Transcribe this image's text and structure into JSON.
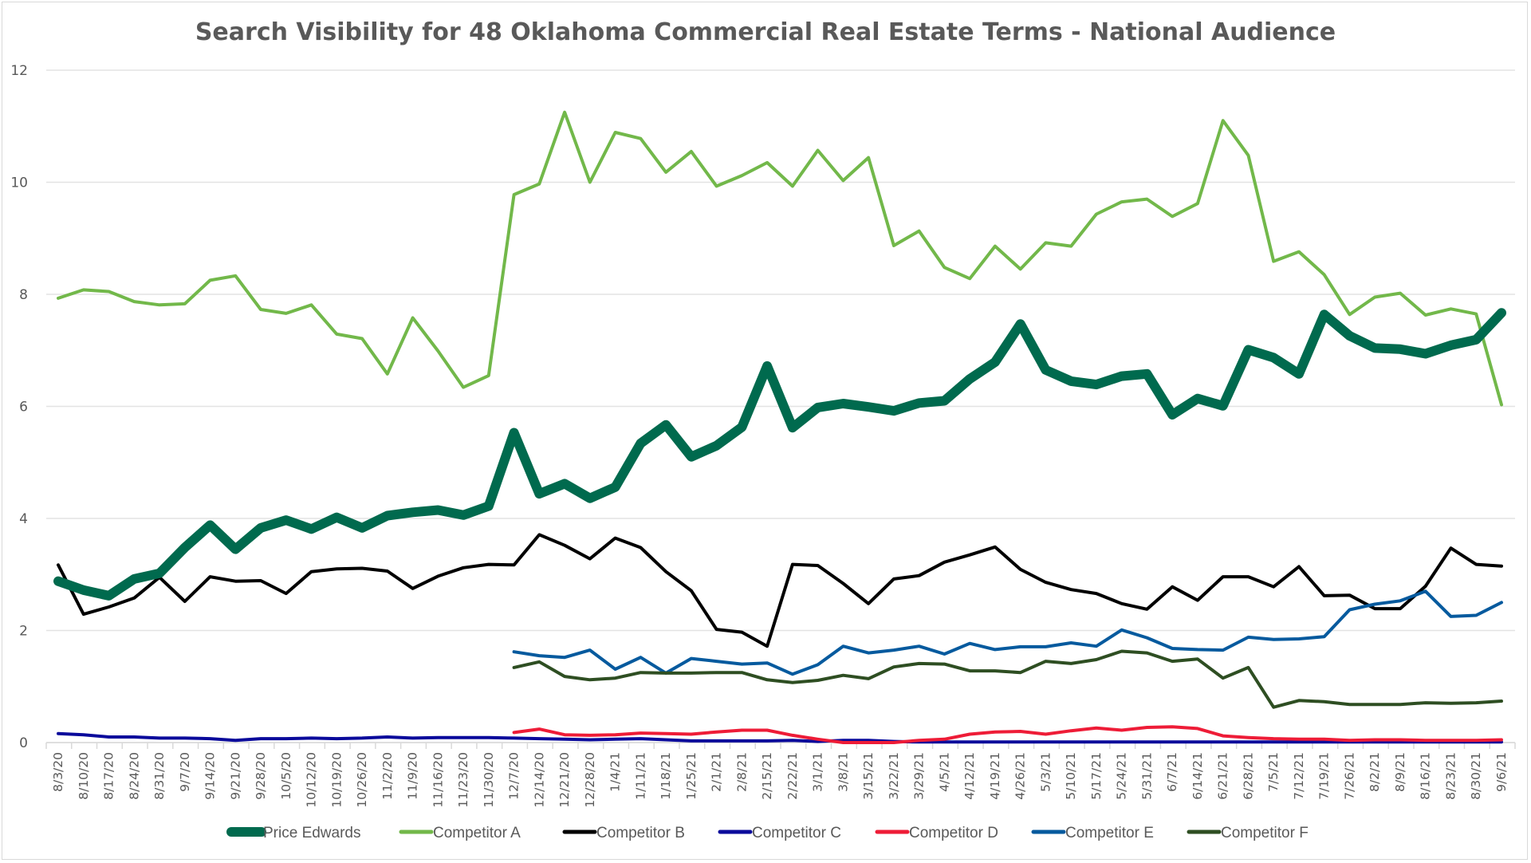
{
  "chart_data": {
    "type": "line",
    "title": "Search Visibility for 48 Oklahoma Commercial Real Estate Terms - National Audience",
    "xlabel": "",
    "ylabel": "",
    "ylim": [
      0,
      12
    ],
    "yticks": [
      0,
      2,
      4,
      6,
      8,
      10,
      12
    ],
    "grid": true,
    "legend_position": "bottom",
    "x": [
      "8/3/20",
      "8/10/20",
      "8/17/20",
      "8/24/20",
      "8/31/20",
      "9/7/20",
      "9/14/20",
      "9/21/20",
      "9/28/20",
      "10/5/20",
      "10/12/20",
      "10/19/20",
      "10/26/20",
      "11/2/20",
      "11/9/20",
      "11/16/20",
      "11/23/20",
      "11/30/20",
      "12/7/20",
      "12/14/20",
      "12/21/20",
      "12/28/20",
      "1/4/21",
      "1/11/21",
      "1/18/21",
      "1/25/21",
      "2/1/21",
      "2/8/21",
      "2/15/21",
      "2/22/21",
      "3/1/21",
      "3/8/21",
      "3/15/21",
      "3/22/21",
      "3/29/21",
      "4/5/21",
      "4/12/21",
      "4/19/21",
      "4/26/21",
      "5/3/21",
      "5/10/21",
      "5/17/21",
      "5/24/21",
      "5/31/21",
      "6/7/21",
      "6/14/21",
      "6/21/21",
      "6/28/21",
      "7/5/21",
      "7/12/21",
      "7/19/21",
      "7/26/21",
      "8/2/21",
      "8/9/21",
      "8/16/21",
      "8/23/21",
      "8/30/21",
      "9/6/21"
    ],
    "series": [
      {
        "name": "Price Edwards",
        "color": "#006a4e",
        "emphasis": "thick",
        "values": [
          2.88,
          2.72,
          2.62,
          2.92,
          3.02,
          3.48,
          3.88,
          3.45,
          3.83,
          3.97,
          3.81,
          4.02,
          3.83,
          4.05,
          4.11,
          4.15,
          4.06,
          4.22,
          5.53,
          4.44,
          4.62,
          4.36,
          4.56,
          5.34,
          5.67,
          5.1,
          5.3,
          5.63,
          6.72,
          5.62,
          5.98,
          6.05,
          5.99,
          5.92,
          6.06,
          6.1,
          6.49,
          6.79,
          7.47,
          6.65,
          6.45,
          6.39,
          6.54,
          6.58,
          5.85,
          6.14,
          6.01,
          7.01,
          6.87,
          6.58,
          7.64,
          7.26,
          7.04,
          7.02,
          6.94,
          7.09,
          7.19,
          7.67
        ]
      },
      {
        "name": "Competitor A",
        "color": "#72b84a",
        "emphasis": "normal",
        "values": [
          7.93,
          8.08,
          8.05,
          7.87,
          7.81,
          7.83,
          8.25,
          8.33,
          7.73,
          7.66,
          7.81,
          7.29,
          7.21,
          6.58,
          7.58,
          6.99,
          6.34,
          6.55,
          9.78,
          9.97,
          11.25,
          10.0,
          10.89,
          10.78,
          10.18,
          10.55,
          9.93,
          10.12,
          10.35,
          9.93,
          10.57,
          10.03,
          10.44,
          8.87,
          9.13,
          8.48,
          8.28,
          8.86,
          8.45,
          8.92,
          8.86,
          9.43,
          9.65,
          9.7,
          9.39,
          9.62,
          11.1,
          10.48,
          8.59,
          8.76,
          8.35,
          7.64,
          7.95,
          8.02,
          7.63,
          7.74,
          7.65,
          6.03
        ]
      },
      {
        "name": "Competitor B",
        "color": "#000000",
        "emphasis": "normal",
        "values": [
          3.17,
          2.29,
          2.42,
          2.58,
          2.95,
          2.52,
          2.96,
          2.88,
          2.89,
          2.66,
          3.05,
          3.1,
          3.11,
          3.06,
          2.75,
          2.97,
          3.12,
          3.18,
          3.17,
          3.71,
          3.52,
          3.28,
          3.65,
          3.48,
          3.05,
          2.71,
          2.02,
          1.97,
          1.72,
          3.18,
          3.16,
          2.84,
          2.48,
          2.92,
          2.98,
          3.22,
          3.35,
          3.49,
          3.09,
          2.86,
          2.73,
          2.66,
          2.48,
          2.38,
          2.78,
          2.54,
          2.96,
          2.96,
          2.78,
          3.14,
          2.62,
          2.63,
          2.39,
          2.39,
          2.79,
          3.47,
          3.18,
          3.15
        ]
      },
      {
        "name": "Competitor C",
        "color": "#0a0a9b",
        "emphasis": "normal",
        "values": [
          0.16,
          0.14,
          0.1,
          0.1,
          0.08,
          0.08,
          0.07,
          0.04,
          0.07,
          0.07,
          0.08,
          0.07,
          0.08,
          0.1,
          0.08,
          0.09,
          0.09,
          0.09,
          0.08,
          0.07,
          0.06,
          0.05,
          0.06,
          0.07,
          0.05,
          0.03,
          0.03,
          0.03,
          0.03,
          0.04,
          0.02,
          0.04,
          0.04,
          0.02,
          0.01,
          0.01,
          0.01,
          0.01,
          0.01,
          0.01,
          0.01,
          0.01,
          0.01,
          0.01,
          0.01,
          0.01,
          0.01,
          0.01,
          0.01,
          0.01,
          0.01,
          0.01,
          0.01,
          0.01,
          0.01,
          0.01,
          0.01,
          0.01
        ]
      },
      {
        "name": "Competitor D",
        "color": "#ee1c37",
        "emphasis": "normal",
        "values": [
          null,
          null,
          null,
          null,
          null,
          null,
          null,
          null,
          null,
          null,
          null,
          null,
          null,
          null,
          null,
          null,
          null,
          null,
          0.18,
          0.24,
          0.14,
          0.13,
          0.14,
          0.17,
          0.16,
          0.15,
          0.19,
          0.22,
          0.22,
          0.13,
          0.06,
          0.0,
          0.0,
          0.0,
          0.04,
          0.06,
          0.15,
          0.19,
          0.2,
          0.15,
          0.21,
          0.26,
          0.22,
          0.27,
          0.28,
          0.25,
          0.12,
          0.09,
          0.07,
          0.06,
          0.06,
          0.04,
          0.05,
          0.05,
          0.04,
          0.04,
          0.04,
          0.05
        ]
      },
      {
        "name": "Competitor E",
        "color": "#065a9e",
        "emphasis": "normal",
        "values": [
          null,
          null,
          null,
          null,
          null,
          null,
          null,
          null,
          null,
          null,
          null,
          null,
          null,
          null,
          null,
          null,
          null,
          null,
          1.62,
          1.55,
          1.52,
          1.65,
          1.31,
          1.52,
          1.24,
          1.5,
          1.45,
          1.4,
          1.42,
          1.22,
          1.39,
          1.72,
          1.6,
          1.65,
          1.72,
          1.58,
          1.77,
          1.66,
          1.71,
          1.71,
          1.78,
          1.72,
          2.01,
          1.87,
          1.68,
          1.66,
          1.65,
          1.88,
          1.84,
          1.85,
          1.89,
          2.37,
          2.47,
          2.53,
          2.7,
          2.25,
          2.27,
          2.5
        ]
      },
      {
        "name": "Competitor F",
        "color": "#2e4e22",
        "emphasis": "normal",
        "values": [
          null,
          null,
          null,
          null,
          null,
          null,
          null,
          null,
          null,
          null,
          null,
          null,
          null,
          null,
          null,
          null,
          null,
          null,
          1.34,
          1.44,
          1.18,
          1.12,
          1.15,
          1.25,
          1.24,
          1.24,
          1.25,
          1.25,
          1.12,
          1.07,
          1.11,
          1.2,
          1.14,
          1.35,
          1.41,
          1.4,
          1.28,
          1.28,
          1.25,
          1.45,
          1.41,
          1.48,
          1.63,
          1.6,
          1.45,
          1.49,
          1.15,
          1.34,
          0.63,
          0.75,
          0.73,
          0.68,
          0.68,
          0.68,
          0.71,
          0.7,
          0.71,
          0.74
        ]
      }
    ]
  }
}
